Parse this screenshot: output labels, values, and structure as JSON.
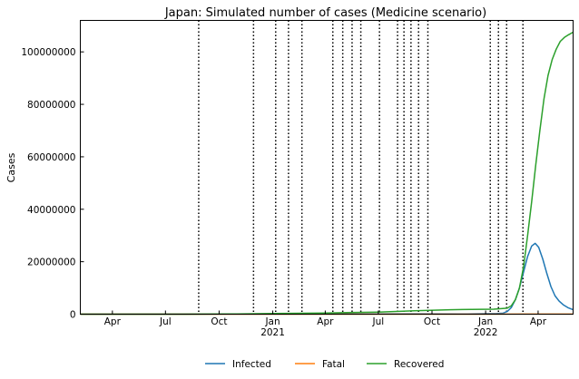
{
  "chart_data": {
    "type": "line",
    "title": "Japan: Simulated number of cases (Medicine scenario)",
    "xlabel": "",
    "ylabel": "Cases",
    "xlim": [
      "2020-02-06",
      "2022-05-31"
    ],
    "ylim": [
      0,
      112000000
    ],
    "yticks": [
      0,
      20000000,
      40000000,
      60000000,
      80000000,
      100000000
    ],
    "ytick_labels": [
      "0",
      "20000000",
      "40000000",
      "60000000",
      "80000000",
      "100000000"
    ],
    "xticks": [
      {
        "date": "2020-04-01",
        "label": "Apr",
        "sublabel": ""
      },
      {
        "date": "2020-07-01",
        "label": "Jul",
        "sublabel": ""
      },
      {
        "date": "2020-10-01",
        "label": "Oct",
        "sublabel": ""
      },
      {
        "date": "2021-01-01",
        "label": "Jan",
        "sublabel": "2021"
      },
      {
        "date": "2021-04-01",
        "label": "Apr",
        "sublabel": ""
      },
      {
        "date": "2021-07-01",
        "label": "Jul",
        "sublabel": ""
      },
      {
        "date": "2021-10-01",
        "label": "Oct",
        "sublabel": ""
      },
      {
        "date": "2022-01-01",
        "label": "Jan",
        "sublabel": "2022"
      },
      {
        "date": "2022-04-01",
        "label": "Apr",
        "sublabel": ""
      }
    ],
    "change_dates": [
      "2020-08-27",
      "2020-11-29",
      "2021-01-06",
      "2021-01-28",
      "2021-02-20",
      "2021-04-14",
      "2021-05-01",
      "2021-05-17",
      "2021-06-01",
      "2021-07-03",
      "2021-08-03",
      "2021-08-14",
      "2021-08-26",
      "2021-09-08",
      "2021-09-24",
      "2022-01-09",
      "2022-01-23",
      "2022-02-06",
      "2022-03-06"
    ],
    "grid": false,
    "legend": "bottom-center",
    "series": [
      {
        "name": "Infected",
        "color": "#1f77b4",
        "points": [
          [
            "2020-02-06",
            0
          ],
          [
            "2021-01-01",
            60000
          ],
          [
            "2021-06-01",
            100000
          ],
          [
            "2021-09-01",
            150000
          ],
          [
            "2021-12-01",
            100000
          ],
          [
            "2022-01-20",
            250000
          ],
          [
            "2022-01-31",
            400000
          ],
          [
            "2022-02-07",
            1000000
          ],
          [
            "2022-02-14",
            2500000
          ],
          [
            "2022-02-21",
            5500000
          ],
          [
            "2022-02-28",
            10000000
          ],
          [
            "2022-03-07",
            16000000
          ],
          [
            "2022-03-14",
            22000000
          ],
          [
            "2022-03-21",
            26000000
          ],
          [
            "2022-03-27",
            27000000
          ],
          [
            "2022-04-02",
            25500000
          ],
          [
            "2022-04-09",
            21000000
          ],
          [
            "2022-04-16",
            15500000
          ],
          [
            "2022-04-23",
            10500000
          ],
          [
            "2022-04-30",
            7000000
          ],
          [
            "2022-05-07",
            5000000
          ],
          [
            "2022-05-14",
            3600000
          ],
          [
            "2022-05-22",
            2500000
          ],
          [
            "2022-05-31",
            1700000
          ]
        ]
      },
      {
        "name": "Fatal",
        "color": "#ff7f0e",
        "points": [
          [
            "2020-02-06",
            0
          ],
          [
            "2021-06-01",
            13000
          ],
          [
            "2022-01-01",
            20000
          ],
          [
            "2022-03-01",
            30000
          ],
          [
            "2022-05-31",
            60000
          ]
        ]
      },
      {
        "name": "Recovered",
        "color": "#2ca02c",
        "points": [
          [
            "2020-02-06",
            0
          ],
          [
            "2020-08-01",
            20000
          ],
          [
            "2020-11-01",
            100000
          ],
          [
            "2021-01-01",
            250000
          ],
          [
            "2021-04-01",
            450000
          ],
          [
            "2021-07-01",
            800000
          ],
          [
            "2021-09-01",
            1300000
          ],
          [
            "2021-11-01",
            1700000
          ],
          [
            "2022-01-15",
            1900000
          ],
          [
            "2022-02-07",
            2300000
          ],
          [
            "2022-02-14",
            3200000
          ],
          [
            "2022-02-21",
            5500000
          ],
          [
            "2022-02-28",
            10000000
          ],
          [
            "2022-03-07",
            18000000
          ],
          [
            "2022-03-14",
            30000000
          ],
          [
            "2022-03-21",
            43000000
          ],
          [
            "2022-03-28",
            57000000
          ],
          [
            "2022-04-04",
            70000000
          ],
          [
            "2022-04-11",
            82000000
          ],
          [
            "2022-04-18",
            91000000
          ],
          [
            "2022-04-25",
            97000000
          ],
          [
            "2022-05-02",
            101000000
          ],
          [
            "2022-05-09",
            104000000
          ],
          [
            "2022-05-16",
            105500000
          ],
          [
            "2022-05-23",
            106500000
          ],
          [
            "2022-05-31",
            107500000
          ]
        ]
      }
    ]
  }
}
